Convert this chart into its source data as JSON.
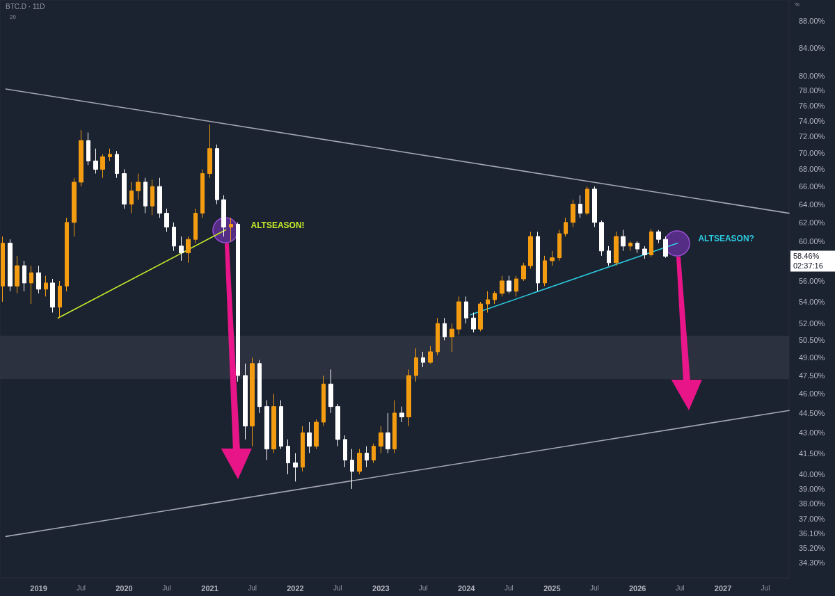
{
  "chart_data": {
    "type": "candlestick",
    "title": "BTC.D · 11D",
    "ylabel": "%",
    "log": true,
    "x": [
      "2018-08",
      "2018-09",
      "2018-10",
      "2018-11",
      "2018-12",
      "2019-01",
      "2019-02",
      "2019-03",
      "2019-04",
      "2019-05",
      "2019-06",
      "2019-07",
      "2019-08",
      "2019-09",
      "2019-10",
      "2019-11",
      "2019-12",
      "2020-01",
      "2020-02",
      "2020-03",
      "2020-04",
      "2020-05",
      "2020-06",
      "2020-07",
      "2020-08",
      "2020-09",
      "2020-10",
      "2020-11",
      "2020-12",
      "2021-01",
      "2021-02",
      "2021-03",
      "2021-04",
      "2021-05",
      "2021-06",
      "2021-07",
      "2021-08",
      "2021-09",
      "2021-10",
      "2021-11",
      "2021-12",
      "2022-01",
      "2022-02",
      "2022-03",
      "2022-04",
      "2022-05",
      "2022-06",
      "2022-07",
      "2022-08",
      "2022-09",
      "2022-10",
      "2022-11",
      "2022-12",
      "2023-01",
      "2023-02",
      "2023-03",
      "2023-04",
      "2023-05",
      "2023-06",
      "2023-07",
      "2023-08",
      "2023-09",
      "2023-10",
      "2023-11",
      "2023-12",
      "2024-01",
      "2024-02",
      "2024-03",
      "2024-04",
      "2024-05",
      "2024-06",
      "2024-07",
      "2024-08",
      "2024-09",
      "2024-10",
      "2024-11",
      "2024-12",
      "2025-01",
      "2025-02",
      "2025-03",
      "2025-04",
      "2025-05",
      "2025-06",
      "2025-07",
      "2025-08",
      "2025-09",
      "2025-10",
      "2025-11",
      "2025-12",
      "2026-01",
      "2026-02",
      "2026-03",
      "2026-04",
      "2026-05"
    ],
    "ohlc": [
      [
        55.5,
        60.5,
        54.0,
        59.8
      ],
      [
        59.8,
        60.2,
        55.0,
        55.5
      ],
      [
        55.5,
        58.5,
        54.8,
        57.5
      ],
      [
        57.5,
        58.0,
        55.0,
        55.8
      ],
      [
        55.8,
        57.5,
        53.8,
        56.8
      ],
      [
        56.8,
        57.5,
        54.8,
        55.2
      ],
      [
        55.2,
        56.5,
        54.5,
        55.8
      ],
      [
        55.8,
        56.2,
        53.0,
        53.5
      ],
      [
        53.5,
        56.0,
        52.5,
        55.5
      ],
      [
        55.5,
        62.5,
        55.0,
        62.0
      ],
      [
        62.0,
        67.0,
        60.5,
        66.5
      ],
      [
        66.5,
        72.8,
        66.0,
        71.5
      ],
      [
        71.5,
        72.5,
        68.5,
        69.0
      ],
      [
        69.0,
        70.5,
        67.5,
        68.0
      ],
      [
        68.0,
        69.8,
        67.0,
        69.5
      ],
      [
        69.5,
        70.5,
        69.0,
        69.8
      ],
      [
        69.8,
        70.2,
        67.0,
        67.5
      ],
      [
        67.5,
        68.0,
        63.5,
        64.0
      ],
      [
        64.0,
        66.5,
        63.0,
        65.5
      ],
      [
        65.5,
        67.5,
        64.5,
        66.5
      ],
      [
        66.5,
        67.0,
        63.0,
        63.8
      ],
      [
        63.8,
        66.8,
        62.8,
        66.0
      ],
      [
        66.0,
        67.0,
        62.5,
        63.0
      ],
      [
        63.0,
        63.5,
        61.0,
        61.5
      ],
      [
        61.5,
        62.0,
        59.0,
        59.5
      ],
      [
        59.5,
        60.5,
        58.0,
        58.8
      ],
      [
        58.8,
        60.5,
        57.8,
        60.2
      ],
      [
        60.2,
        63.5,
        59.8,
        63.0
      ],
      [
        63.0,
        68.0,
        62.5,
        67.5
      ],
      [
        67.5,
        73.5,
        67.0,
        70.5
      ],
      [
        70.5,
        71.0,
        64.0,
        64.5
      ],
      [
        64.5,
        65.0,
        60.5,
        61.5
      ],
      [
        61.5,
        62.5,
        60.0,
        61.8
      ],
      [
        61.8,
        62.0,
        47.0,
        47.5
      ],
      [
        47.5,
        48.5,
        42.5,
        43.5
      ],
      [
        43.5,
        49.0,
        42.0,
        48.5
      ],
      [
        48.5,
        48.8,
        44.5,
        45.0
      ],
      [
        45.0,
        45.5,
        41.0,
        41.8
      ],
      [
        41.8,
        46.0,
        41.5,
        45.0
      ],
      [
        45.0,
        45.5,
        41.8,
        42.0
      ],
      [
        42.0,
        42.5,
        40.0,
        40.8
      ],
      [
        40.8,
        41.5,
        39.5,
        40.5
      ],
      [
        40.5,
        43.5,
        40.2,
        43.0
      ],
      [
        43.0,
        43.8,
        41.5,
        42.0
      ],
      [
        42.0,
        44.0,
        41.8,
        43.8
      ],
      [
        43.8,
        47.5,
        43.5,
        46.8
      ],
      [
        46.8,
        48.0,
        44.5,
        45.0
      ],
      [
        45.0,
        45.2,
        42.0,
        42.5
      ],
      [
        42.5,
        42.8,
        40.5,
        41.0
      ],
      [
        41.0,
        41.8,
        39.0,
        40.2
      ],
      [
        40.2,
        41.8,
        40.0,
        41.5
      ],
      [
        41.5,
        42.0,
        40.5,
        41.0
      ],
      [
        41.0,
        42.2,
        40.8,
        42.0
      ],
      [
        42.0,
        43.5,
        41.5,
        43.0
      ],
      [
        43.0,
        44.5,
        41.5,
        41.8
      ],
      [
        41.8,
        45.5,
        41.5,
        44.5
      ],
      [
        44.5,
        45.0,
        43.8,
        44.2
      ],
      [
        44.2,
        48.0,
        43.5,
        47.5
      ],
      [
        47.5,
        49.8,
        47.0,
        49.0
      ],
      [
        49.0,
        49.5,
        48.2,
        48.6
      ],
      [
        48.6,
        50.0,
        48.5,
        49.5
      ],
      [
        49.5,
        52.5,
        49.2,
        52.0
      ],
      [
        52.0,
        52.5,
        50.5,
        50.8
      ],
      [
        50.8,
        52.0,
        49.5,
        51.5
      ],
      [
        51.5,
        54.5,
        51.0,
        54.0
      ],
      [
        54.0,
        54.5,
        52.0,
        52.5
      ],
      [
        52.5,
        53.0,
        51.2,
        51.5
      ],
      [
        51.5,
        54.0,
        51.3,
        53.8
      ],
      [
        53.8,
        55.0,
        53.0,
        54.2
      ],
      [
        54.2,
        55.0,
        53.8,
        54.8
      ],
      [
        54.8,
        56.5,
        54.5,
        56.0
      ],
      [
        56.0,
        56.5,
        54.8,
        55.0
      ],
      [
        55.0,
        56.5,
        54.5,
        56.2
      ],
      [
        56.2,
        57.8,
        56.0,
        57.5
      ],
      [
        57.5,
        61.0,
        57.2,
        60.5
      ],
      [
        60.5,
        61.0,
        55.0,
        55.8
      ],
      [
        55.8,
        58.5,
        55.5,
        58.0
      ],
      [
        58.0,
        59.0,
        57.5,
        58.3
      ],
      [
        58.3,
        61.2,
        58.0,
        60.8
      ],
      [
        60.8,
        62.5,
        60.5,
        62.0
      ],
      [
        62.0,
        64.5,
        61.5,
        64.0
      ],
      [
        64.0,
        65.0,
        62.5,
        63.0
      ],
      [
        63.0,
        66.0,
        62.8,
        65.7
      ],
      [
        65.7,
        66.0,
        61.5,
        62.0
      ],
      [
        62.0,
        62.2,
        58.5,
        59.0
      ],
      [
        59.0,
        59.5,
        57.5,
        57.8
      ],
      [
        57.8,
        61.0,
        57.5,
        60.5
      ],
      [
        60.5,
        61.2,
        59.0,
        59.5
      ],
      [
        59.5,
        60.0,
        59.0,
        59.8
      ],
      [
        59.8,
        60.0,
        58.8,
        59.2
      ],
      [
        59.2,
        59.5,
        58.2,
        58.6
      ],
      [
        58.6,
        61.3,
        58.4,
        61.0
      ],
      [
        61.0,
        61.2,
        59.8,
        60.2
      ],
      [
        60.2,
        60.5,
        58.3,
        58.46
      ]
    ],
    "colors": [
      "#f39c12",
      "#ffffff",
      "#f39c12",
      "#ffffff",
      "#f39c12",
      "#ffffff",
      "#f39c12",
      "#ffffff",
      "#f39c12",
      "#f39c12",
      "#f39c12",
      "#f39c12",
      "#ffffff",
      "#ffffff",
      "#f39c12",
      "#f39c12",
      "#ffffff",
      "#ffffff",
      "#f39c12",
      "#f39c12",
      "#ffffff",
      "#f39c12",
      "#ffffff",
      "#ffffff",
      "#ffffff",
      "#ffffff",
      "#f39c12",
      "#f39c12",
      "#f39c12",
      "#f39c12",
      "#ffffff",
      "#ffffff",
      "#f39c12",
      "#ffffff",
      "#ffffff",
      "#f39c12",
      "#ffffff",
      "#ffffff",
      "#f39c12",
      "#ffffff",
      "#ffffff",
      "#ffffff",
      "#f39c12",
      "#ffffff",
      "#f39c12",
      "#f39c12",
      "#ffffff",
      "#ffffff",
      "#ffffff",
      "#ffffff",
      "#f39c12",
      "#ffffff",
      "#f39c12",
      "#f39c12",
      "#ffffff",
      "#f39c12",
      "#ffffff",
      "#f39c12",
      "#f39c12",
      "#ffffff",
      "#f39c12",
      "#f39c12",
      "#ffffff",
      "#f39c12",
      "#f39c12",
      "#ffffff",
      "#ffffff",
      "#f39c12",
      "#f39c12",
      "#f39c12",
      "#f39c12",
      "#ffffff",
      "#f39c12",
      "#f39c12",
      "#f39c12",
      "#ffffff",
      "#f39c12",
      "#f39c12",
      "#f39c12",
      "#f39c12",
      "#f39c12",
      "#ffffff",
      "#f39c12",
      "#ffffff",
      "#ffffff",
      "#ffffff",
      "#f39c12",
      "#ffffff",
      "#f39c12",
      "#ffffff",
      "#ffffff",
      "#f39c12",
      "#ffffff",
      "#ffffff"
    ],
    "series": [
      {
        "type": "line",
        "color": "#a3a7b0",
        "x": [
          "2018-08-14",
          "2027-10-10"
        ],
        "values": [
          78.2,
          63.0
        ]
      },
      {
        "type": "line",
        "color": "#a3a7b0",
        "x": [
          "2018-08-14",
          "2027-10-10"
        ],
        "values": [
          35.9,
          44.7
        ]
      },
      {
        "type": "line",
        "color": "#c6ec2a",
        "x": [
          "2019-03-25",
          "2021-03-10"
        ],
        "values": [
          52.5,
          61.2
        ]
      },
      {
        "type": "line",
        "color": "#2ccbe0",
        "x": [
          "2024-01-20",
          "2026-06-20"
        ],
        "values": [
          52.8,
          59.8
        ]
      }
    ],
    "bands": [
      {
        "axis": "y",
        "from": 47.2,
        "to": 50.9,
        "color": "#2b313e"
      }
    ],
    "annotations": [
      "ALTSEASON!",
      "ALTSEASON?",
      "58.46%",
      "20",
      "02:37:16"
    ],
    "xlim": [
      "2018-07-20",
      "2027-10-10"
    ],
    "xticks": [
      "2019",
      {
        "value": "2019-07",
        "label": "Jul"
      },
      "2020",
      {
        "value": "2020-07",
        "label": "Jul"
      },
      "2021",
      {
        "value": "2021-07",
        "label": "Jul"
      },
      "2022",
      {
        "value": "2022-07",
        "label": "Jul"
      },
      "2023",
      {
        "value": "2023-07",
        "label": "Jul"
      },
      "2024",
      {
        "value": "2024-07",
        "label": "Jul"
      },
      "2025",
      {
        "value": "2025-07",
        "label": "Jul"
      },
      "2026",
      {
        "value": "2026-07",
        "label": "Jul"
      },
      "2027",
      {
        "value": "2027-07",
        "label": "Jul"
      }
    ],
    "ylim": [
      33.4,
      91.3
    ],
    "yticks": [
      {
        "value": 88,
        "label": "88.00%"
      },
      {
        "value": 84,
        "label": "84.00%"
      },
      {
        "value": 80,
        "label": "80.00%"
      },
      {
        "value": 78,
        "label": "78.00%"
      },
      {
        "value": 76,
        "label": "76.00%"
      },
      {
        "value": 74,
        "label": "74.00%"
      },
      {
        "value": 72,
        "label": "72.00%"
      },
      {
        "value": 70,
        "label": "70.00%"
      },
      {
        "value": 68,
        "label": "68.00%"
      },
      {
        "value": 66,
        "label": "66.00%"
      },
      {
        "value": 64,
        "label": "64.00%"
      },
      {
        "value": 62,
        "label": "62.00%"
      },
      {
        "value": 60,
        "label": "60.00%"
      },
      {
        "value": 56,
        "label": "56.00%"
      },
      {
        "value": 54,
        "label": "54.00%"
      },
      {
        "value": 52,
        "label": "52.00%"
      },
      {
        "value": 50.5,
        "label": "50.50%"
      },
      {
        "value": 49,
        "label": "49.00%"
      },
      {
        "value": 47.5,
        "label": "47.50%"
      },
      {
        "value": 46,
        "label": "46.00%"
      },
      {
        "value": 44.5,
        "label": "44.50%"
      },
      {
        "value": 43,
        "label": "43.00%"
      },
      {
        "value": 41.5,
        "label": "41.50%"
      },
      {
        "value": 40,
        "label": "40.00%"
      },
      {
        "value": 39,
        "label": "39.00%"
      },
      {
        "value": 38,
        "label": "38.00%"
      },
      {
        "value": 37,
        "label": "37.00%"
      },
      {
        "value": 36.1,
        "label": "36.10%"
      },
      {
        "value": 35.2,
        "label": "35.20%"
      },
      {
        "value": 34.3,
        "label": "34.30%"
      }
    ]
  }
}
